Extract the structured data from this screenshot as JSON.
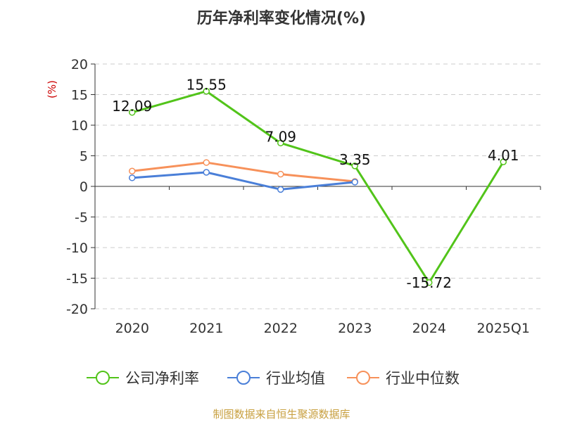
{
  "chart_data": {
    "type": "line",
    "title": "历年净利率变化情况(%)",
    "ylabel": "(%)",
    "xlabel": "",
    "categories": [
      "2020",
      "2021",
      "2022",
      "2023",
      "2024",
      "2025Q1"
    ],
    "ylim": [
      -20,
      20
    ],
    "yticks": [
      20,
      15,
      10,
      5,
      0,
      -5,
      -10,
      -15,
      -20
    ],
    "grid": true,
    "legend_position": "bottom",
    "series": [
      {
        "name": "公司净利率",
        "color": "#52c41a",
        "values": [
          12.09,
          15.55,
          7.09,
          3.35,
          -15.72,
          4.01
        ],
        "labels": [
          "12.09",
          "15.55",
          "7.09",
          "3.35",
          "-15.72",
          "4.01"
        ]
      },
      {
        "name": "行业均值",
        "color": "#4a7fd8",
        "values": [
          1.4,
          2.3,
          -0.5,
          0.7,
          null,
          null
        ]
      },
      {
        "name": "行业中位数",
        "color": "#f7915a",
        "values": [
          2.5,
          3.9,
          2.0,
          0.8,
          null,
          null
        ]
      }
    ],
    "source": "制图数据来自恒生聚源数据库"
  },
  "colors": {
    "ylabel": "#cc0000",
    "source": "#c8a040",
    "grid": "#cccccc",
    "axis": "#333333"
  }
}
